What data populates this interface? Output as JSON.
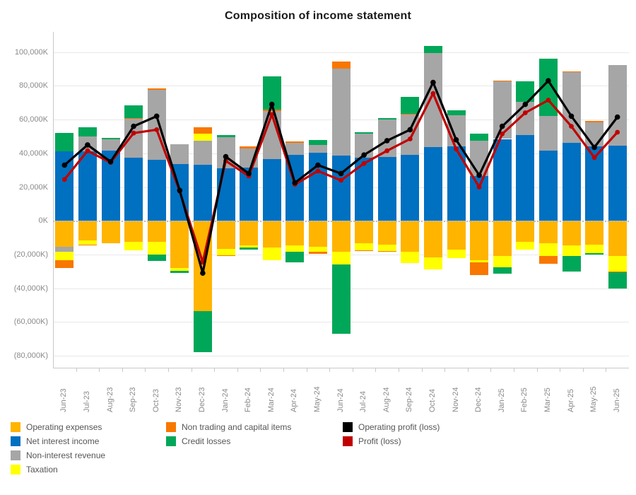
{
  "chart_data": {
    "type": "combo-stacked-bar-line",
    "title": "Composition of income statement",
    "axis": {
      "y_max": 112000,
      "y_min": -87500,
      "grid_step": 20000,
      "y_ticks": [
        {
          "label": "100,000K",
          "value": 100000
        },
        {
          "label": "80,000K",
          "value": 80000
        },
        {
          "label": "60,000K",
          "value": 60000
        },
        {
          "label": "40,000K",
          "value": 40000
        },
        {
          "label": "20,000K",
          "value": 20000
        },
        {
          "label": "0K",
          "value": 0
        },
        {
          "label": "(20,000K)",
          "value": -20000
        },
        {
          "label": "(40,000K)",
          "value": -40000
        },
        {
          "label": "(60,000K)",
          "value": -60000
        },
        {
          "label": "(80,000K)",
          "value": -80000
        }
      ]
    },
    "colors": {
      "opex": "#FFB400",
      "nii": "#0070C0",
      "nir": "#A6A6A6",
      "tax": "#FFFF00",
      "ntci": "#F87700",
      "credit": "#00A758",
      "op": "#000000",
      "pr": "#C00000"
    },
    "series_names": {
      "opex": "Operating expenses",
      "nii": "Net interest income",
      "nir": "Non-interest revenue",
      "tax": "Taxation",
      "ntci": "Non trading and capital items",
      "credit": "Credit losses",
      "op": "Operating profit (loss)",
      "pr": "Profit (loss)"
    },
    "categories": [
      "Jun-23",
      "Jul-23",
      "Aug-23",
      "Sep-23",
      "Oct-23",
      "Nov-23",
      "Dec-23",
      "Jan-24",
      "Feb-24",
      "Mar-24",
      "Apr-24",
      "May-24",
      "Jun-24",
      "Jul-24",
      "Aug-24",
      "Sep-24",
      "Oct-24",
      "Nov-24",
      "Dec-24",
      "Jan-25",
      "Feb-25",
      "Mar-25",
      "Apr-25",
      "May-25",
      "Jun-25"
    ],
    "months": [
      {
        "m": "Jun-23",
        "pos": [
          [
            "nii",
            41000
          ],
          [
            "credit",
            11000
          ]
        ],
        "neg": [
          [
            "opex",
            15500
          ],
          [
            "nir",
            3000
          ],
          [
            "tax",
            5000
          ],
          [
            "ntci",
            4500
          ]
        ],
        "op": 33000,
        "pr": 24500
      },
      {
        "m": "Jul-23",
        "pos": [
          [
            "nii",
            41000
          ],
          [
            "nir",
            9000
          ],
          [
            "credit",
            5500
          ]
        ],
        "neg": [
          [
            "opex",
            11500
          ],
          [
            "tax",
            2500
          ],
          [
            "ntci",
            500
          ]
        ],
        "op": 45000,
        "pr": 41500
      },
      {
        "m": "Aug-23",
        "pos": [
          [
            "nii",
            41500
          ],
          [
            "nir",
            7000
          ],
          [
            "credit",
            500
          ]
        ],
        "neg": [
          [
            "opex",
            13500
          ]
        ],
        "op": 35000,
        "pr": 34500
      },
      {
        "m": "Sep-23",
        "pos": [
          [
            "nii",
            37500
          ],
          [
            "nir",
            23000
          ],
          [
            "ntci",
            500
          ],
          [
            "credit",
            7500
          ]
        ],
        "neg": [
          [
            "opex",
            12500
          ],
          [
            "tax",
            5000
          ]
        ],
        "op": 56000,
        "pr": 52000
      },
      {
        "m": "Oct-23",
        "pos": [
          [
            "nii",
            36000
          ],
          [
            "nir",
            41500
          ],
          [
            "ntci",
            1000
          ]
        ],
        "neg": [
          [
            "opex",
            12500
          ],
          [
            "tax",
            7500
          ],
          [
            "credit",
            4000
          ]
        ],
        "op": 62000,
        "pr": 54000
      },
      {
        "m": "Nov-23",
        "pos": [
          [
            "nii",
            33500
          ],
          [
            "nir",
            12000
          ]
        ],
        "neg": [
          [
            "opex",
            28000
          ],
          [
            "tax",
            1500
          ],
          [
            "credit",
            1500
          ]
        ],
        "op": 18000,
        "pr": 17500
      },
      {
        "m": "Dec-23",
        "pos": [
          [
            "nii",
            33000
          ],
          [
            "nir",
            14500
          ],
          [
            "tax",
            4000
          ],
          [
            "ntci",
            4000
          ]
        ],
        "neg": [
          [
            "opex",
            53500
          ],
          [
            "credit",
            24500
          ]
        ],
        "op": -31000,
        "pr": -24500
      },
      {
        "m": "Jan-24",
        "pos": [
          [
            "nii",
            31000
          ],
          [
            "nir",
            18500
          ],
          [
            "credit",
            1500
          ]
        ],
        "neg": [
          [
            "opex",
            16500
          ],
          [
            "tax",
            4000
          ],
          [
            "ntci",
            500
          ]
        ],
        "op": 38000,
        "pr": 35500
      },
      {
        "m": "Feb-24",
        "pos": [
          [
            "nii",
            31500
          ],
          [
            "nir",
            11500
          ],
          [
            "ntci",
            1000
          ]
        ],
        "neg": [
          [
            "opex",
            14500
          ],
          [
            "tax",
            1500
          ],
          [
            "credit",
            1000
          ]
        ],
        "op": 28000,
        "pr": 26500
      },
      {
        "m": "Mar-24",
        "pos": [
          [
            "nii",
            36500
          ],
          [
            "nir",
            28500
          ],
          [
            "ntci",
            1000
          ],
          [
            "credit",
            19500
          ]
        ],
        "neg": [
          [
            "opex",
            16000
          ],
          [
            "tax",
            7500
          ]
        ],
        "op": 69000,
        "pr": 63000
      },
      {
        "m": "Apr-24",
        "pos": [
          [
            "nii",
            39000
          ],
          [
            "nir",
            7000
          ],
          [
            "ntci",
            1000
          ]
        ],
        "neg": [
          [
            "opex",
            14500
          ],
          [
            "tax",
            4000
          ],
          [
            "credit",
            6000
          ]
        ],
        "op": 22500,
        "pr": 21500
      },
      {
        "m": "May-24",
        "pos": [
          [
            "nii",
            40500
          ],
          [
            "nir",
            4500
          ],
          [
            "credit",
            3000
          ]
        ],
        "neg": [
          [
            "opex",
            15500
          ],
          [
            "tax",
            3000
          ],
          [
            "ntci",
            1000
          ]
        ],
        "op": 33000,
        "pr": 29500
      },
      {
        "m": "Jun-24",
        "pos": [
          [
            "nii",
            38500
          ],
          [
            "nir",
            51500
          ],
          [
            "ntci",
            4500
          ]
        ],
        "neg": [
          [
            "opex",
            18500
          ],
          [
            "tax",
            7500
          ],
          [
            "credit",
            41000
          ]
        ],
        "op": 28000,
        "pr": 24000
      },
      {
        "m": "Jul-24",
        "pos": [
          [
            "nii",
            37500
          ],
          [
            "nir",
            14000
          ],
          [
            "credit",
            1000
          ]
        ],
        "neg": [
          [
            "opex",
            13500
          ],
          [
            "tax",
            4000
          ],
          [
            "ntci",
            500
          ]
        ],
        "op": 39000,
        "pr": 34000
      },
      {
        "m": "Aug-24",
        "pos": [
          [
            "nii",
            38000
          ],
          [
            "nir",
            22000
          ],
          [
            "credit",
            1000
          ]
        ],
        "neg": [
          [
            "opex",
            14000
          ],
          [
            "tax",
            4000
          ],
          [
            "ntci",
            500
          ]
        ],
        "op": 47500,
        "pr": 41500
      },
      {
        "m": "Sep-24",
        "pos": [
          [
            "nii",
            39000
          ],
          [
            "nir",
            24000
          ],
          [
            "ntci",
            500
          ],
          [
            "credit",
            10000
          ]
        ],
        "neg": [
          [
            "opex",
            18500
          ],
          [
            "tax",
            6500
          ]
        ],
        "op": 54000,
        "pr": 48500
      },
      {
        "m": "Oct-24",
        "pos": [
          [
            "nii",
            43500
          ],
          [
            "nir",
            56000
          ],
          [
            "credit",
            4000
          ]
        ],
        "neg": [
          [
            "opex",
            21500
          ],
          [
            "tax",
            7500
          ]
        ],
        "op": 82000,
        "pr": 75500
      },
      {
        "m": "Nov-24",
        "pos": [
          [
            "nii",
            44000
          ],
          [
            "nir",
            18500
          ],
          [
            "credit",
            3000
          ]
        ],
        "neg": [
          [
            "opex",
            17000
          ],
          [
            "tax",
            5000
          ]
        ],
        "op": 48000,
        "pr": 42500
      },
      {
        "m": "Dec-24",
        "pos": [
          [
            "nii",
            26500
          ],
          [
            "nir",
            21000
          ],
          [
            "credit",
            4000
          ]
        ],
        "neg": [
          [
            "opex",
            23500
          ],
          [
            "tax",
            1000
          ],
          [
            "ntci",
            7500
          ]
        ],
        "op": 27000,
        "pr": 20000
      },
      {
        "m": "Jan-25",
        "pos": [
          [
            "nii",
            48500
          ],
          [
            "nir",
            34000
          ],
          [
            "ntci",
            500
          ]
        ],
        "neg": [
          [
            "opex",
            21000
          ],
          [
            "tax",
            6500
          ],
          [
            "credit",
            4000
          ]
        ],
        "op": 56000,
        "pr": 51500
      },
      {
        "m": "Feb-25",
        "pos": [
          [
            "nii",
            51000
          ],
          [
            "nir",
            19500
          ],
          [
            "credit",
            12000
          ]
        ],
        "neg": [
          [
            "opex",
            12500
          ],
          [
            "tax",
            4500
          ]
        ],
        "op": 69000,
        "pr": 64000
      },
      {
        "m": "Mar-25",
        "pos": [
          [
            "nii",
            41500
          ],
          [
            "nir",
            20500
          ],
          [
            "credit",
            34000
          ]
        ],
        "neg": [
          [
            "opex",
            13500
          ],
          [
            "tax",
            7500
          ],
          [
            "ntci",
            4500
          ]
        ],
        "op": 83000,
        "pr": 71500
      },
      {
        "m": "Apr-25",
        "pos": [
          [
            "nii",
            46000
          ],
          [
            "nir",
            42000
          ],
          [
            "ntci",
            500
          ]
        ],
        "neg": [
          [
            "opex",
            14500
          ],
          [
            "tax",
            6500
          ],
          [
            "credit",
            9000
          ]
        ],
        "op": 62000,
        "pr": 56000
      },
      {
        "m": "May-25",
        "pos": [
          [
            "nii",
            44000
          ],
          [
            "nir",
            14500
          ],
          [
            "ntci",
            500
          ]
        ],
        "neg": [
          [
            "opex",
            14000
          ],
          [
            "tax",
            5000
          ],
          [
            "credit",
            1000
          ]
        ],
        "op": 43500,
        "pr": 37500
      },
      {
        "m": "Jun-25",
        "pos": [
          [
            "nii",
            44500
          ],
          [
            "nir",
            48000
          ]
        ],
        "neg": [
          [
            "opex",
            21000
          ],
          [
            "tax",
            9000
          ],
          [
            "ntci",
            500
          ],
          [
            "credit",
            9500
          ]
        ],
        "op": 61500,
        "pr": 52500
      }
    ],
    "legend_position": "bottom",
    "grid": true
  },
  "legend": {
    "col1": [
      {
        "key": "opex",
        "label": "Operating expenses"
      },
      {
        "key": "nii",
        "label": "Net interest income"
      },
      {
        "key": "nir",
        "label": "Non-interest revenue"
      },
      {
        "key": "tax",
        "label": "Taxation"
      }
    ],
    "col2": [
      {
        "key": "ntci",
        "label": "Non trading and capital items"
      },
      {
        "key": "credit",
        "label": "Credit losses"
      }
    ],
    "col3": [
      {
        "key": "op",
        "label": "Operating profit (loss)"
      },
      {
        "key": "pr",
        "label": "Profit (loss)"
      }
    ]
  }
}
